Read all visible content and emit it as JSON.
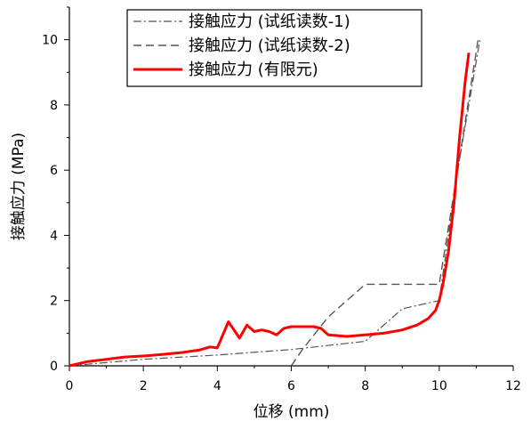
{
  "chart_data": {
    "type": "line",
    "xlabel": "位移 (mm)",
    "ylabel": "接触应力 (MPa)",
    "xlim": [
      0,
      12
    ],
    "ylim": [
      0,
      11
    ],
    "xticks": [
      0,
      2,
      4,
      6,
      8,
      10,
      12
    ],
    "yticks": [
      0,
      2,
      4,
      6,
      8,
      10
    ],
    "grid": false,
    "legend_position": "top-center",
    "series": [
      {
        "name": "接触应力 (试纸读数-1)",
        "color": "#555555",
        "style": "dashdot",
        "x": [
          0,
          2,
          4,
          6,
          8,
          9,
          10,
          10.5,
          11.1
        ],
        "y": [
          0,
          0.2,
          0.33,
          0.5,
          0.75,
          1.75,
          2.0,
          6.0,
          10.0
        ]
      },
      {
        "name": "接触应力 (试纸读数-2)",
        "color": "#555555",
        "style": "dashed",
        "x": [
          6.0,
          6.3,
          7.0,
          8.0,
          10.0,
          10.5,
          11.05
        ],
        "y": [
          0,
          0.5,
          1.5,
          2.5,
          2.5,
          6.0,
          10.0
        ]
      },
      {
        "name": "接触应力 (有限元)",
        "color": "#ff0000",
        "style": "solid",
        "x": [
          0,
          0.5,
          1,
          1.5,
          2,
          2.5,
          3,
          3.5,
          3.8,
          4.0,
          4.3,
          4.6,
          4.8,
          5.0,
          5.2,
          5.4,
          5.6,
          5.8,
          6.0,
          6.3,
          6.6,
          6.8,
          7.0,
          7.5,
          8.0,
          8.5,
          9.0,
          9.4,
          9.7,
          9.9,
          10.0,
          10.1,
          10.25,
          10.4,
          10.55,
          10.7,
          10.8
        ],
        "y": [
          0,
          0.13,
          0.2,
          0.27,
          0.3,
          0.35,
          0.4,
          0.48,
          0.58,
          0.55,
          1.35,
          0.85,
          1.25,
          1.05,
          1.1,
          1.05,
          0.95,
          1.15,
          1.2,
          1.2,
          1.2,
          1.15,
          0.95,
          0.9,
          0.95,
          1.0,
          1.1,
          1.25,
          1.45,
          1.7,
          2.0,
          2.5,
          3.5,
          5.0,
          7.0,
          8.7,
          9.6
        ]
      }
    ]
  }
}
